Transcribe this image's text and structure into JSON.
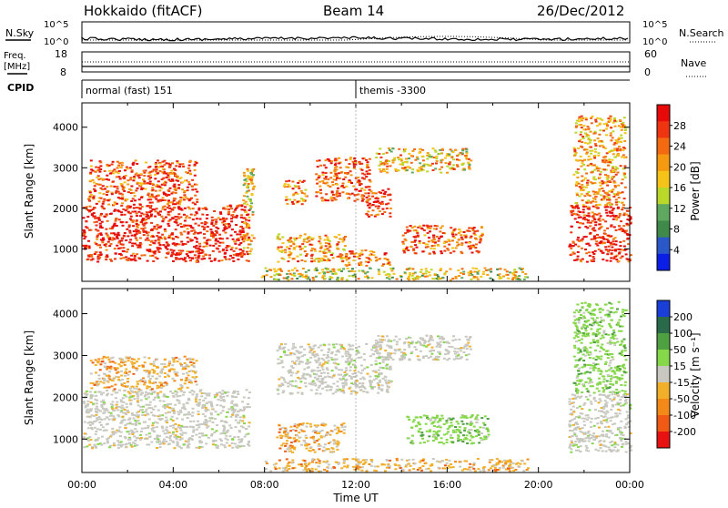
{
  "header": {
    "station": "Hokkaido (fitACF)",
    "beam": "Beam 14",
    "date": "26/Dec/2012"
  },
  "top_panels": {
    "nsky_label": "N.Sky",
    "nsearch_label": "N.Search",
    "nsky_ticks": [
      "10^5",
      "10^0"
    ],
    "nsky_right_ticks": [
      "10^5",
      "10^0"
    ],
    "freq_label_1": "Freq.",
    "freq_label_2": "[MHz]",
    "freq_ticks": [
      "18",
      "8"
    ],
    "nave_label": "Nave",
    "nave_ticks": [
      "60",
      "0"
    ],
    "cpid_label": "CPID",
    "cpid_segments": [
      {
        "label": "normal (fast) 151",
        "start_ut": 0.0
      },
      {
        "label": "themis -3300",
        "start_ut": 12.0
      }
    ]
  },
  "chart_data": [
    {
      "type": "heatmap",
      "name": "power-panel",
      "ylabel": "Slant Range [km]",
      "xlabel": "",
      "xlim": [
        0,
        24
      ],
      "ylim": [
        200,
        4600
      ],
      "yticks": [
        1000,
        2000,
        3000,
        4000
      ],
      "colorbar": {
        "label": "Power [dB]",
        "ticks": [
          "4",
          "8",
          "12",
          "16",
          "20",
          "24",
          "28"
        ],
        "colors": [
          "#0a1ee6",
          "#2a58c8",
          "#3f8a4a",
          "#5fa860",
          "#b9d82a",
          "#f6c418",
          "#f59a10",
          "#f36a10",
          "#ee3410",
          "#e80a0a"
        ]
      },
      "regions": [
        {
          "t0": 0.0,
          "t1": 7.3,
          "r0": 700,
          "r1": 2100,
          "level": 0.92
        },
        {
          "t0": 0.2,
          "t1": 5.0,
          "r0": 2100,
          "r1": 3200,
          "level": 0.8
        },
        {
          "t0": 7.0,
          "t1": 7.5,
          "r0": 900,
          "r1": 3000,
          "level": 0.55
        },
        {
          "t0": 8.8,
          "t1": 9.8,
          "r0": 2100,
          "r1": 2700,
          "level": 0.7
        },
        {
          "t0": 10.2,
          "t1": 12.6,
          "r0": 2200,
          "r1": 3300,
          "level": 0.82
        },
        {
          "t0": 12.4,
          "t1": 13.5,
          "r0": 1800,
          "r1": 2500,
          "level": 0.88
        },
        {
          "t0": 8.5,
          "t1": 11.5,
          "r0": 700,
          "r1": 1400,
          "level": 0.68
        },
        {
          "t0": 11.5,
          "t1": 13.5,
          "r0": 600,
          "r1": 1000,
          "level": 0.75
        },
        {
          "t0": 14.0,
          "t1": 17.5,
          "r0": 900,
          "r1": 1600,
          "level": 0.78
        },
        {
          "t0": 12.8,
          "t1": 17.0,
          "r0": 2900,
          "r1": 3500,
          "level": 0.6
        },
        {
          "t0": 7.8,
          "t1": 19.5,
          "r0": 250,
          "r1": 550,
          "level": 0.5
        },
        {
          "t0": 21.3,
          "t1": 24.0,
          "r0": 700,
          "r1": 2100,
          "level": 0.9
        },
        {
          "t0": 21.5,
          "t1": 23.8,
          "r0": 2100,
          "r1": 4300,
          "level": 0.65
        }
      ]
    },
    {
      "type": "heatmap",
      "name": "velocity-panel",
      "ylabel": "Slant Range [km]",
      "xlabel": "Time UT",
      "xlim": [
        0,
        24
      ],
      "ylim": [
        200,
        4600
      ],
      "yticks": [
        1000,
        2000,
        3000,
        4000
      ],
      "xticks": [
        "00:00",
        "04:00",
        "08:00",
        "12:00",
        "16:00",
        "20:00",
        "00:00"
      ],
      "colorbar": {
        "label": "Velocity [m s⁻¹]",
        "ticks": [
          "200",
          "100",
          "50",
          "15",
          "-15",
          "-50",
          "-100",
          "-200"
        ],
        "colors": [
          "#1a3fd8",
          "#2a6a4a",
          "#4fa040",
          "#86d84a",
          "#c8c8c0",
          "#f2b02a",
          "#f38a18",
          "#f05a14",
          "#e81212"
        ]
      },
      "regions": [
        {
          "t0": 0.0,
          "t1": 7.3,
          "r0": 800,
          "r1": 2200,
          "kind": "ground"
        },
        {
          "t0": 0.3,
          "t1": 5.0,
          "r0": 2200,
          "r1": 3000,
          "kind": "neg"
        },
        {
          "t0": 8.5,
          "t1": 13.5,
          "r0": 2100,
          "r1": 3300,
          "kind": "ground"
        },
        {
          "t0": 8.5,
          "t1": 11.5,
          "r0": 700,
          "r1": 1400,
          "kind": "neg"
        },
        {
          "t0": 14.2,
          "t1": 17.8,
          "r0": 900,
          "r1": 1600,
          "kind": "pos"
        },
        {
          "t0": 12.8,
          "t1": 17.0,
          "r0": 2900,
          "r1": 3500,
          "kind": "ground"
        },
        {
          "t0": 8.0,
          "t1": 19.5,
          "r0": 250,
          "r1": 550,
          "kind": "neg"
        },
        {
          "t0": 21.3,
          "t1": 24.0,
          "r0": 700,
          "r1": 2100,
          "kind": "ground"
        },
        {
          "t0": 21.5,
          "t1": 23.8,
          "r0": 2100,
          "r1": 4300,
          "kind": "pos"
        }
      ]
    }
  ]
}
